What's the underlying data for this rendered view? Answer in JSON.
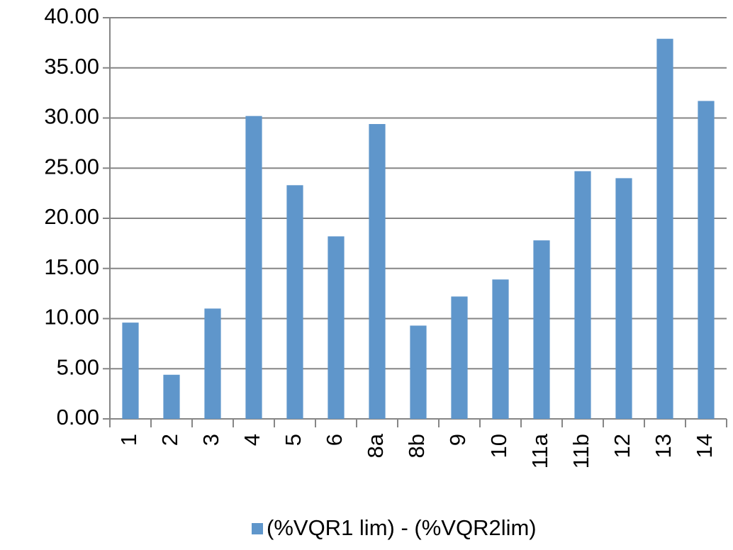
{
  "chart_data": {
    "type": "bar",
    "categories": [
      "1",
      "2",
      "3",
      "4",
      "5",
      "6",
      "8a",
      "8b",
      "9",
      "10",
      "11a",
      "11b",
      "12",
      "13",
      "14"
    ],
    "series": [
      {
        "name": "(%VQR1 lim) - (%VQR2lim)",
        "color": "#5f96cb",
        "values": [
          9.6,
          4.4,
          11.0,
          30.2,
          23.3,
          18.2,
          29.4,
          9.3,
          12.2,
          13.9,
          17.8,
          24.7,
          24.0,
          37.9,
          31.7
        ]
      }
    ],
    "ylim": [
      0,
      40
    ],
    "yticks": [
      {
        "value": 0,
        "label": "0.00"
      },
      {
        "value": 5,
        "label": "5.00"
      },
      {
        "value": 10,
        "label": "10.00"
      },
      {
        "value": 15,
        "label": "15.00"
      },
      {
        "value": 20,
        "label": "20.00"
      },
      {
        "value": 25,
        "label": "25.00"
      },
      {
        "value": 30,
        "label": "30.00"
      },
      {
        "value": 35,
        "label": "35.00"
      },
      {
        "value": 40,
        "label": "40.00"
      }
    ],
    "grid": true,
    "legend": "bottom"
  }
}
